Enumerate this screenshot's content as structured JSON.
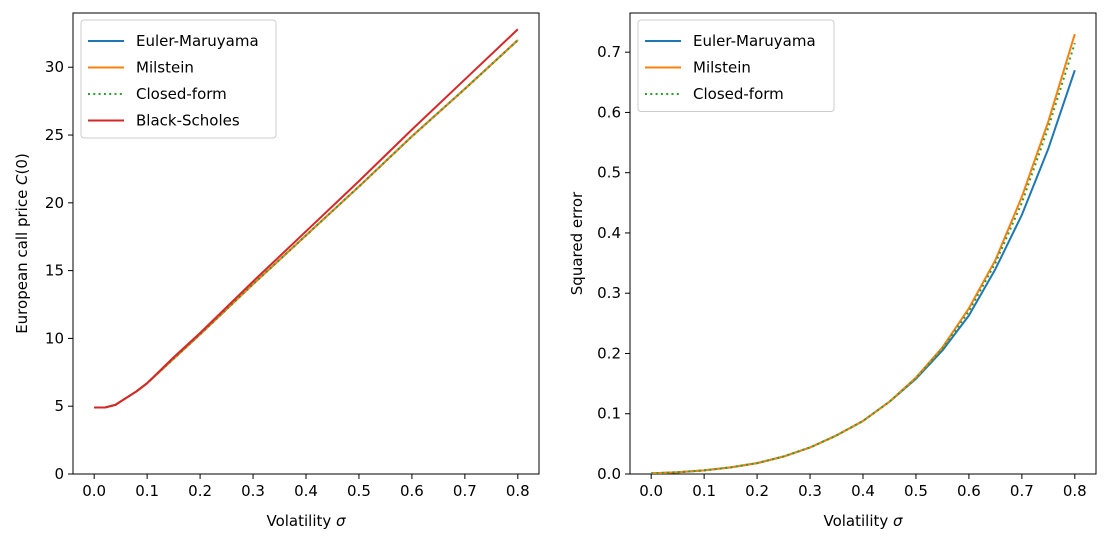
{
  "chart_data": [
    {
      "type": "line",
      "title": "",
      "xlabel": "Volatility σ",
      "ylabel": "European call price C(0)",
      "xlim": [
        -0.04,
        0.84
      ],
      "ylim": [
        0,
        34
      ],
      "xticks": [
        0.0,
        0.1,
        0.2,
        0.3,
        0.4,
        0.5,
        0.6,
        0.7,
        0.8
      ],
      "xtick_labels": [
        "0.0",
        "0.1",
        "0.2",
        "0.3",
        "0.4",
        "0.5",
        "0.6",
        "0.7",
        "0.8"
      ],
      "yticks": [
        0,
        5,
        10,
        15,
        20,
        25,
        30
      ],
      "ytick_labels": [
        "0",
        "5",
        "10",
        "15",
        "20",
        "25",
        "30"
      ],
      "grid": false,
      "legend_position": "top-left",
      "x": [
        0.0,
        0.02,
        0.04,
        0.06,
        0.08,
        0.1,
        0.15,
        0.2,
        0.3,
        0.4,
        0.5,
        0.6,
        0.7,
        0.8
      ],
      "series": [
        {
          "name": "Euler-Maruyama",
          "color": "#1f77b4",
          "style": "solid",
          "values": [
            4.9,
            4.9,
            5.1,
            5.6,
            6.1,
            6.7,
            8.5,
            10.3,
            14.0,
            17.6,
            21.2,
            24.9,
            28.4,
            32.0
          ]
        },
        {
          "name": "Milstein",
          "color": "#ff7f0e",
          "style": "solid",
          "values": [
            4.9,
            4.9,
            5.1,
            5.6,
            6.1,
            6.7,
            8.5,
            10.3,
            14.0,
            17.6,
            21.2,
            24.9,
            28.4,
            32.0
          ]
        },
        {
          "name": "Closed-form",
          "color": "#2ca02c",
          "style": "dotted",
          "values": [
            4.9,
            4.9,
            5.1,
            5.6,
            6.1,
            6.7,
            8.5,
            10.3,
            14.0,
            17.6,
            21.2,
            24.9,
            28.4,
            32.0
          ]
        },
        {
          "name": "Black-Scholes",
          "color": "#d62728",
          "style": "solid",
          "values": [
            4.9,
            4.9,
            5.1,
            5.6,
            6.1,
            6.7,
            8.6,
            10.4,
            14.2,
            17.9,
            21.6,
            25.4,
            29.1,
            32.8
          ]
        }
      ]
    },
    {
      "type": "line",
      "title": "",
      "xlabel": "Volatility σ",
      "ylabel": "Squared error",
      "xlim": [
        -0.04,
        0.84
      ],
      "ylim": [
        0,
        0.765
      ],
      "xticks": [
        0.0,
        0.1,
        0.2,
        0.3,
        0.4,
        0.5,
        0.6,
        0.7,
        0.8
      ],
      "xtick_labels": [
        "0.0",
        "0.1",
        "0.2",
        "0.3",
        "0.4",
        "0.5",
        "0.6",
        "0.7",
        "0.8"
      ],
      "yticks": [
        0.0,
        0.1,
        0.2,
        0.3,
        0.4,
        0.5,
        0.6,
        0.7
      ],
      "ytick_labels": [
        "0.0",
        "0.1",
        "0.2",
        "0.3",
        "0.4",
        "0.5",
        "0.6",
        "0.7"
      ],
      "grid": false,
      "legend_position": "top-left",
      "x": [
        0.0,
        0.05,
        0.1,
        0.15,
        0.2,
        0.25,
        0.3,
        0.35,
        0.4,
        0.45,
        0.5,
        0.55,
        0.6,
        0.65,
        0.7,
        0.75,
        0.8
      ],
      "series": [
        {
          "name": "Euler-Maruyama",
          "color": "#1f77b4",
          "style": "solid",
          "values": [
            0.001,
            0.003,
            0.006,
            0.011,
            0.018,
            0.029,
            0.044,
            0.064,
            0.088,
            0.12,
            0.158,
            0.205,
            0.263,
            0.34,
            0.43,
            0.54,
            0.67
          ]
        },
        {
          "name": "Milstein",
          "color": "#ff7f0e",
          "style": "solid",
          "values": [
            0.001,
            0.003,
            0.006,
            0.011,
            0.018,
            0.029,
            0.044,
            0.064,
            0.088,
            0.12,
            0.16,
            0.21,
            0.275,
            0.355,
            0.46,
            0.585,
            0.73
          ]
        },
        {
          "name": "Closed-form",
          "color": "#2ca02c",
          "style": "dotted",
          "values": [
            0.001,
            0.003,
            0.006,
            0.011,
            0.018,
            0.029,
            0.044,
            0.064,
            0.088,
            0.12,
            0.159,
            0.208,
            0.27,
            0.35,
            0.45,
            0.575,
            0.715
          ]
        }
      ]
    }
  ]
}
